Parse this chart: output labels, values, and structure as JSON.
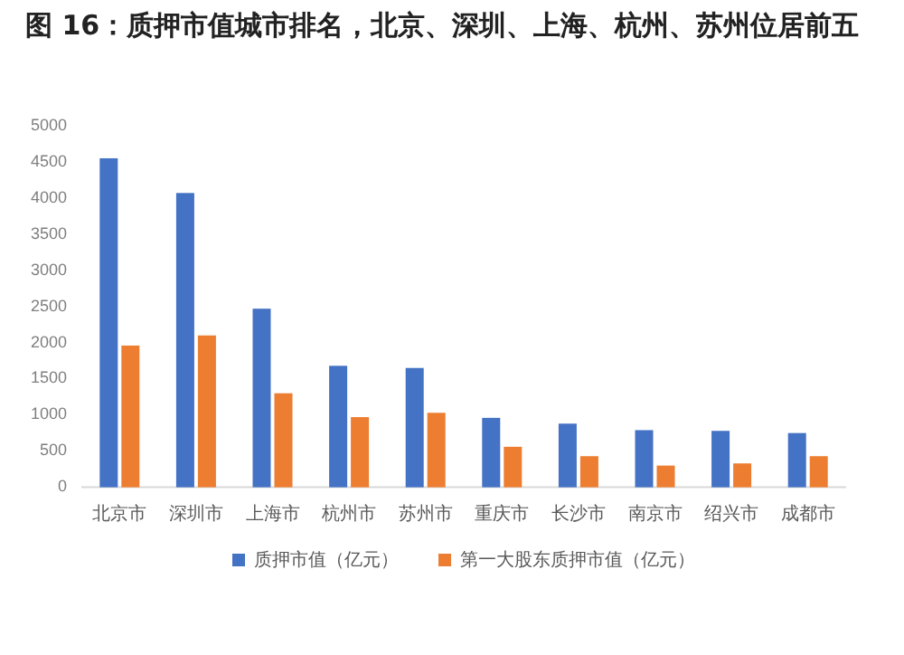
{
  "chart_data": {
    "type": "bar",
    "title": "图 16：质押市值城市排名，北京、深圳、上海、杭州、苏州位居前五",
    "categories": [
      "北京市",
      "深圳市",
      "上海市",
      "杭州市",
      "苏州市",
      "重庆市",
      "长沙市",
      "南京市",
      "绍兴市",
      "成都市"
    ],
    "series": [
      {
        "name": "质押市值（亿元）",
        "color": "#4472c4",
        "values": [
          4550,
          4070,
          2470,
          1680,
          1650,
          960,
          880,
          790,
          780,
          750
        ]
      },
      {
        "name": "第一大股东质押市值（亿元）",
        "color": "#ed7d31",
        "values": [
          1960,
          2100,
          1300,
          970,
          1030,
          560,
          430,
          300,
          330,
          430
        ]
      }
    ],
    "ylim": [
      0,
      5000
    ],
    "yticks": [
      0,
      500,
      1000,
      1500,
      2000,
      2500,
      3000,
      3500,
      4000,
      4500,
      5000
    ],
    "legend": "bottom"
  }
}
